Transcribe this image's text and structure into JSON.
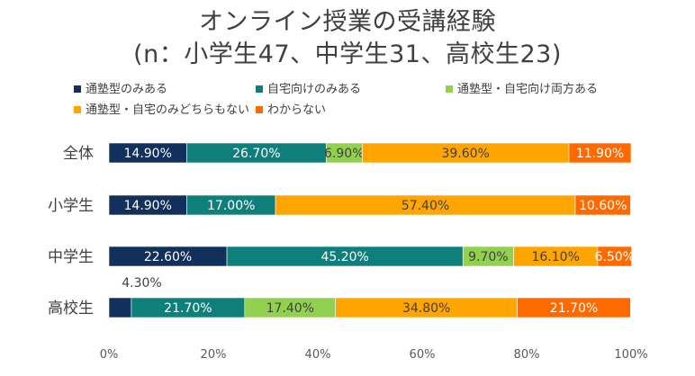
{
  "chart_data": {
    "type": "bar",
    "orientation": "horizontal",
    "stacked": true,
    "title": "オンライン授業の受講経験",
    "subtitle": "(n：小学生47、中学生31、高校生23)",
    "categories": [
      "全体",
      "小学生",
      "中学生",
      "高校生"
    ],
    "series": [
      {
        "name": "通塾型のみある",
        "color": "#12305C",
        "values": [
          14.9,
          14.9,
          22.6,
          4.3
        ]
      },
      {
        "name": "自宅向けのみある",
        "color": "#0F7F7C",
        "values": [
          26.7,
          17.0,
          45.2,
          21.7
        ]
      },
      {
        "name": "通塾型・自宅向け両方ある",
        "color": "#92D050",
        "values": [
          6.9,
          0,
          9.7,
          17.4
        ]
      },
      {
        "name": "通塾型・自宅のみどちらもない",
        "color": "#FFA500",
        "values": [
          39.6,
          57.4,
          16.1,
          34.8
        ]
      },
      {
        "name": "わからない",
        "color": "#FF6A00",
        "values": [
          11.9,
          10.6,
          6.5,
          21.7
        ]
      }
    ],
    "data_labels": [
      [
        "14.90%",
        "26.70%",
        "6.90%",
        "39.60%",
        "11.90%"
      ],
      [
        "14.90%",
        "17.00%",
        "",
        "57.40%",
        "10.60%"
      ],
      [
        "22.60%",
        "45.20%",
        "9.70%",
        "16.10%",
        "6.50%"
      ],
      [
        "4.30%",
        "21.70%",
        "17.40%",
        "34.80%",
        "21.70%"
      ]
    ],
    "xlim": [
      0,
      100
    ],
    "xticks": [
      "0%",
      "20%",
      "40%",
      "60%",
      "80%",
      "100%"
    ],
    "legend_position": "top",
    "grid": false
  }
}
